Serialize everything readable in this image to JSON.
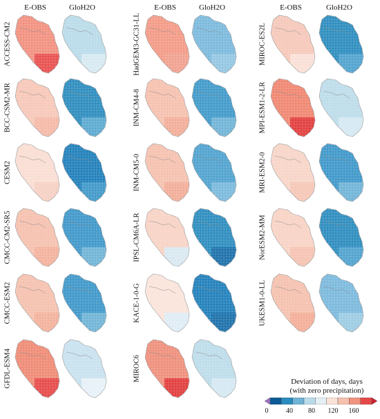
{
  "columns": {
    "eobs": "E-OBS",
    "gloh2o": "GloH2O"
  },
  "models": [
    {
      "name": "ACCESS-CM2",
      "eobs": "#f2907f",
      "gloh2o": "#b9dbe9",
      "eobs_low": "#e94f4f",
      "gloh2o_low": "#d6e9f2"
    },
    {
      "name": "BCC-CSM2-MR",
      "eobs": "#f7c7b8",
      "gloh2o": "#2b8cbe",
      "eobs_low": "#f5b9a6",
      "gloh2o_low": "#5aa9d0"
    },
    {
      "name": "CESM2",
      "eobs": "#f9ddd3",
      "gloh2o": "#1f7fba",
      "eobs_low": "#f6d0c3",
      "gloh2o_low": "#3f98c9"
    },
    {
      "name": "CMCC-CM2-SR5",
      "eobs": "#f6c0ae",
      "gloh2o": "#3d97c9",
      "eobs_low": "#f3b19c",
      "gloh2o_low": "#6fb3d6"
    },
    {
      "name": "CMCC-ESM2",
      "eobs": "#f6c0ae",
      "gloh2o": "#3d97c9",
      "eobs_low": "#f3b19c",
      "gloh2o_low": "#6fb3d6"
    },
    {
      "name": "GFDL-ESM4",
      "eobs": "#ef8a74",
      "gloh2o": "#c8e1ee",
      "eobs_low": "#e64848",
      "gloh2o_low": "#e6f1f7"
    },
    {
      "name": "HadGEM3-GC31-LL",
      "eobs": "#f39a86",
      "gloh2o": "#7ab9dc",
      "eobs_low": "#f1a08e",
      "gloh2o_low": "#93c6e2"
    },
    {
      "name": "INM-CM4-8",
      "eobs": "#f6c0ae",
      "gloh2o": "#3f99ca",
      "eobs_low": "#f2ad98",
      "gloh2o_low": "#6fb3d6"
    },
    {
      "name": "INM-CM5-0",
      "eobs": "#f6c0ae",
      "gloh2o": "#4ea2cf",
      "eobs_low": "#f2ad98",
      "gloh2o_low": "#7ab9dc"
    },
    {
      "name": "IPSL-CM6A-LR",
      "eobs": "#f8d2c4",
      "gloh2o": "#2b8cbe",
      "eobs_low": "#d9e8f1",
      "gloh2o_low": "#1a6faa"
    },
    {
      "name": "KACE-1-0-G",
      "eobs": "#fae3da",
      "gloh2o": "#1f7fba",
      "eobs_low": "#dfecf4",
      "gloh2o_low": "#1a6faa"
    },
    {
      "name": "MIROC6",
      "eobs": "#ef8f7b",
      "gloh2o": "#bcdcea",
      "eobs_low": "#e23c3c",
      "gloh2o_low": "#d4e8f2"
    },
    {
      "name": "MIROC-ES2L",
      "eobs": "#f6c8b9",
      "gloh2o": "#2b8cbe",
      "eobs_low": "#f9e0d6",
      "gloh2o_low": "#4ea2cf"
    },
    {
      "name": "MPI-ESM1-2-LR",
      "eobs": "#f08670",
      "gloh2o": "#bcdcea",
      "eobs_low": "#e23c3c",
      "gloh2o_low": "#d4e8f2"
    },
    {
      "name": "MRI-ESM2-0",
      "eobs": "#f8d4c7",
      "gloh2o": "#3d97c9",
      "eobs_low": "#f5c6b6",
      "gloh2o_low": "#6fb3d6"
    },
    {
      "name": "NorESM2-MM",
      "eobs": "#f8d2c4",
      "gloh2o": "#2b8cbe",
      "eobs_low": "#f6c2b1",
      "gloh2o_low": "#4ea2cf"
    },
    {
      "name": "UKESM1-0-LL",
      "eobs": "#f6c0ae",
      "gloh2o": "#7ab9dc",
      "eobs_low": "#f3ad97",
      "gloh2o_low": "#9ccbe4"
    }
  ],
  "legend": {
    "title_line1": "Deviation of days, days",
    "title_line2": "(with zero precipitation)",
    "ticks": [
      "0",
      "40",
      "80",
      "120",
      "160"
    ],
    "colors": [
      "#9e6fc4",
      "#0b5a96",
      "#2b8cbe",
      "#6fb3d6",
      "#b9dbe9",
      "#e4eff5",
      "#fbe2d8",
      "#f6c0ae",
      "#f09380",
      "#e64848",
      "#cc1f2f"
    ]
  }
}
